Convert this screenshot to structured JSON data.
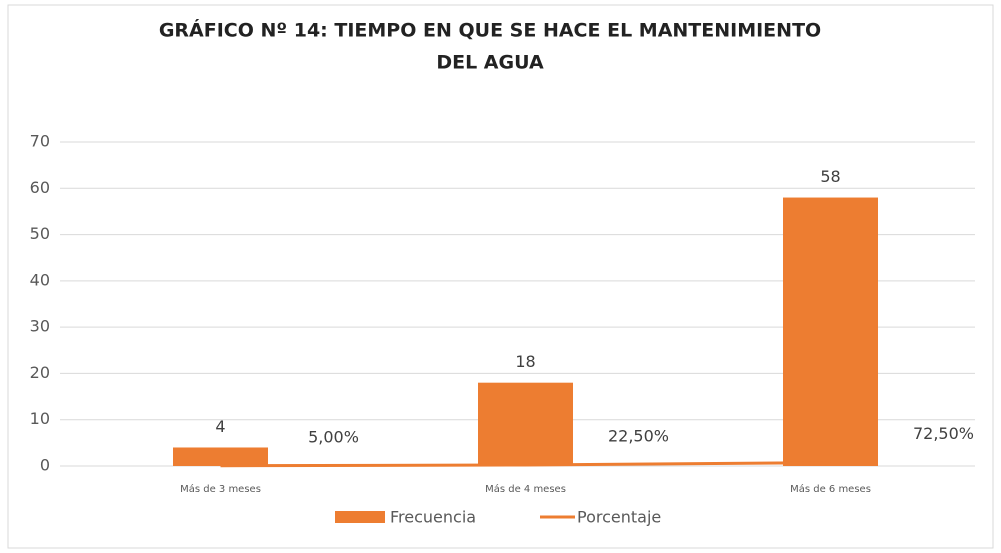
{
  "chart_data": {
    "type": "bar-line",
    "title": [
      "GRÁFICO Nº 14: TIEMPO EN QUE SE HACE EL MANTENIMIENTO",
      "DEL AGUA"
    ],
    "categories": [
      "Más de 3 meses",
      "Más de 4 meses",
      "Más de 6 meses"
    ],
    "series": [
      {
        "name": "Frecuencia",
        "type": "bar",
        "color": "#ed7d31",
        "values": [
          4,
          18,
          58
        ],
        "value_labels": [
          "4",
          "18",
          "58"
        ]
      },
      {
        "name": "Porcentaje",
        "type": "line",
        "color": "#ed7d31",
        "values": [
          0.05,
          0.225,
          0.725
        ],
        "value_labels": [
          "5,00%",
          "22,50%",
          "72,50%"
        ]
      }
    ],
    "ylim": [
      0,
      70
    ],
    "yticks": [
      0,
      10,
      20,
      30,
      40,
      50,
      60,
      70
    ],
    "grid": true,
    "legend": "bottom"
  }
}
